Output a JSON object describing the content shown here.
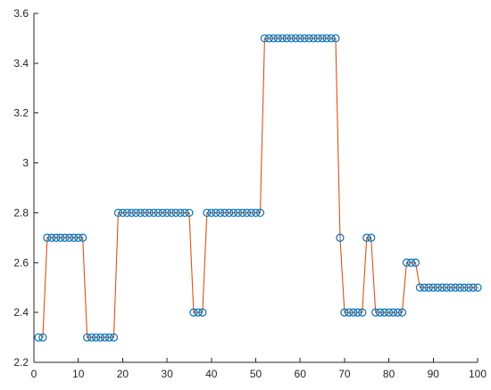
{
  "chart_data": {
    "type": "line",
    "title": "",
    "xlabel": "",
    "ylabel": "",
    "xlim": [
      0,
      100
    ],
    "ylim": [
      2.2,
      3.6
    ],
    "xticks": [
      0,
      10,
      20,
      30,
      40,
      50,
      60,
      70,
      80,
      90,
      100
    ],
    "xtick_labels": [
      "0",
      "10",
      "20",
      "30",
      "40",
      "50",
      "60",
      "70",
      "80",
      "90",
      "100"
    ],
    "yticks": [
      2.2,
      2.4,
      2.6,
      2.8,
      3.0,
      3.2,
      3.4,
      3.6
    ],
    "ytick_labels": [
      "2.2",
      "2.4",
      "2.6",
      "2.8",
      "3",
      "3.2",
      "3.4",
      "3.6"
    ],
    "grid": false,
    "box": "left-bottom axes only",
    "series": [
      {
        "style": "markers-only",
        "marker": "circle",
        "color": "#0072BD",
        "x": [
          1,
          2,
          3,
          4,
          5,
          6,
          7,
          8,
          9,
          10,
          11,
          12,
          13,
          14,
          15,
          16,
          17,
          18,
          19,
          20,
          21,
          22,
          23,
          24,
          25,
          26,
          27,
          28,
          29,
          30,
          31,
          32,
          33,
          34,
          35,
          36,
          37,
          38,
          39,
          40,
          41,
          42,
          43,
          44,
          45,
          46,
          47,
          48,
          49,
          50,
          51,
          52,
          53,
          54,
          55,
          56,
          57,
          58,
          59,
          60,
          61,
          62,
          63,
          64,
          65,
          66,
          67,
          68,
          69,
          70,
          71,
          72,
          73,
          74,
          75,
          76,
          77,
          78,
          79,
          80,
          81,
          82,
          83,
          84,
          85,
          86,
          87,
          88,
          89,
          90,
          91,
          92,
          93,
          94,
          95,
          96,
          97,
          98,
          99,
          100
        ],
        "y": [
          2.3,
          2.3,
          2.7,
          2.7,
          2.7,
          2.7,
          2.7,
          2.7,
          2.7,
          2.7,
          2.7,
          2.3,
          2.3,
          2.3,
          2.3,
          2.3,
          2.3,
          2.3,
          2.8,
          2.8,
          2.8,
          2.8,
          2.8,
          2.8,
          2.8,
          2.8,
          2.8,
          2.8,
          2.8,
          2.8,
          2.8,
          2.8,
          2.8,
          2.8,
          2.8,
          2.4,
          2.4,
          2.4,
          2.8,
          2.8,
          2.8,
          2.8,
          2.8,
          2.8,
          2.8,
          2.8,
          2.8,
          2.8,
          2.8,
          2.8,
          2.8,
          3.5,
          3.5,
          3.5,
          3.5,
          3.5,
          3.5,
          3.5,
          3.5,
          3.5,
          3.5,
          3.5,
          3.5,
          3.5,
          3.5,
          3.5,
          3.5,
          3.5,
          2.7,
          2.4,
          2.4,
          2.4,
          2.4,
          2.4,
          2.7,
          2.7,
          2.4,
          2.4,
          2.4,
          2.4,
          2.4,
          2.4,
          2.4,
          2.6,
          2.6,
          2.6,
          2.5,
          2.5,
          2.5,
          2.5,
          2.5,
          2.5,
          2.5,
          2.5,
          2.5,
          2.5,
          2.5,
          2.5,
          2.5,
          2.5
        ]
      },
      {
        "style": "line-only",
        "color": "#D95319",
        "x": [
          2,
          3,
          4,
          5,
          6,
          7,
          8,
          9,
          10,
          11,
          12,
          13,
          14,
          15,
          16,
          17,
          18,
          19,
          20,
          21,
          22,
          23,
          24,
          25,
          26,
          27,
          28,
          29,
          30,
          31,
          32,
          33,
          34,
          35,
          36,
          37,
          38,
          39,
          40,
          41,
          42,
          43,
          44,
          45,
          46,
          47,
          48,
          49,
          50,
          51,
          52,
          53,
          54,
          55,
          56,
          57,
          58,
          59,
          60,
          61,
          62,
          63,
          64,
          65,
          66,
          67,
          68,
          69,
          70,
          71,
          72,
          73,
          74,
          75,
          76,
          77,
          78,
          79,
          80,
          81,
          82,
          83,
          84,
          85,
          86,
          87,
          88,
          89,
          90,
          91,
          92,
          93,
          94,
          95,
          96,
          97,
          98,
          99,
          100
        ],
        "y": [
          2.3,
          2.7,
          2.7,
          2.7,
          2.7,
          2.7,
          2.7,
          2.7,
          2.7,
          2.7,
          2.3,
          2.3,
          2.3,
          2.3,
          2.3,
          2.3,
          2.3,
          2.8,
          2.8,
          2.8,
          2.8,
          2.8,
          2.8,
          2.8,
          2.8,
          2.8,
          2.8,
          2.8,
          2.8,
          2.8,
          2.8,
          2.8,
          2.8,
          2.8,
          2.4,
          2.4,
          2.4,
          2.8,
          2.8,
          2.8,
          2.8,
          2.8,
          2.8,
          2.8,
          2.8,
          2.8,
          2.8,
          2.8,
          2.8,
          2.8,
          3.5,
          3.5,
          3.5,
          3.5,
          3.5,
          3.5,
          3.5,
          3.5,
          3.5,
          3.5,
          3.5,
          3.5,
          3.5,
          3.5,
          3.5,
          3.5,
          3.5,
          2.7,
          2.4,
          2.4,
          2.4,
          2.4,
          2.4,
          2.7,
          2.7,
          2.4,
          2.4,
          2.4,
          2.4,
          2.4,
          2.4,
          2.4,
          2.6,
          2.6,
          2.6,
          2.5,
          2.5,
          2.5,
          2.5,
          2.5,
          2.5,
          2.5,
          2.5,
          2.5,
          2.5,
          2.5,
          2.5,
          2.5,
          2.5
        ]
      }
    ]
  }
}
